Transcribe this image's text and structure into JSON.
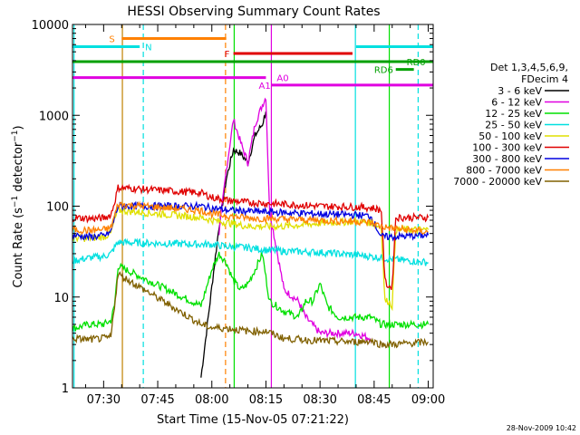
{
  "chart_data": {
    "type": "line",
    "title": "HESSI Observing Summary Count Rates",
    "xlabel": "Start Time (15-Nov-05 07:21:22)",
    "ylabel": "Count Rate (s⁻¹ detector⁻¹)",
    "ylabel_parts": {
      "base": "Count Rate (s",
      "sup1": "−1",
      "mid": " detector",
      "sup2": "−1",
      "end": ")"
    },
    "x_unit": "minutes after 07:00",
    "xlim": [
      21.37,
      121.37
    ],
    "yscale": "log",
    "ylim": [
      1,
      10000
    ],
    "x_ticks": [
      {
        "v": 30,
        "label": "07:30"
      },
      {
        "v": 45,
        "label": "07:45"
      },
      {
        "v": 60,
        "label": "08:00"
      },
      {
        "v": 75,
        "label": "08:15"
      },
      {
        "v": 90,
        "label": "08:30"
      },
      {
        "v": 105,
        "label": "08:45"
      },
      {
        "v": 120,
        "label": "09:00"
      }
    ],
    "y_ticks": [
      {
        "v": 1,
        "label": "1"
      },
      {
        "v": 10,
        "label": "10"
      },
      {
        "v": 100,
        "label": "100"
      },
      {
        "v": 1000,
        "label": "1000"
      },
      {
        "v": 10000,
        "label": "10000"
      }
    ],
    "legend_placement": "right",
    "legend_header": [
      "Det 1,3,4,5,6,9,",
      "FDecim 4"
    ],
    "timestamp": "28-Nov-2009 10:42",
    "series": [
      {
        "name": "3 - 6 keV",
        "color": "#000000",
        "points": [
          [
            57,
            1.3
          ],
          [
            62,
            60
          ],
          [
            64,
            200
          ],
          [
            66,
            420
          ],
          [
            68,
            380
          ],
          [
            70,
            300
          ],
          [
            72,
            600
          ],
          [
            74,
            800
          ],
          [
            75,
            1100
          ]
        ]
      },
      {
        "name": "6 - 12 keV",
        "color": "#e000e0",
        "points": [
          [
            62,
            50
          ],
          [
            64,
            250
          ],
          [
            66,
            900
          ],
          [
            68,
            500
          ],
          [
            70,
            300
          ],
          [
            72,
            800
          ],
          [
            74,
            1300
          ],
          [
            75,
            1600
          ],
          [
            76,
            90
          ],
          [
            80,
            12
          ],
          [
            84,
            9
          ],
          [
            86,
            6
          ],
          [
            90,
            4
          ],
          [
            95,
            4
          ],
          [
            100,
            4
          ],
          [
            104,
            3.5
          ]
        ]
      },
      {
        "name": "12 - 25 keV",
        "color": "#00e000",
        "points": [
          [
            21.4,
            4.5
          ],
          [
            26,
            5
          ],
          [
            30,
            5
          ],
          [
            32,
            5.5
          ],
          [
            33,
            8
          ],
          [
            34,
            22
          ],
          [
            57,
            8
          ],
          [
            60,
            20
          ],
          [
            62,
            30
          ],
          [
            64,
            24
          ],
          [
            66,
            15
          ],
          [
            68,
            12
          ],
          [
            70,
            14
          ],
          [
            72,
            20
          ],
          [
            74,
            30
          ],
          [
            76,
            9
          ],
          [
            80,
            7
          ],
          [
            84,
            6
          ],
          [
            86,
            9
          ],
          [
            88,
            9
          ],
          [
            90,
            14
          ],
          [
            92,
            8
          ],
          [
            95,
            6
          ],
          [
            100,
            6
          ],
          [
            104,
            6
          ],
          [
            107,
            5
          ],
          [
            108,
            5
          ],
          [
            120,
            5
          ]
        ]
      },
      {
        "name": "25 - 50 keV",
        "color": "#00e0e0",
        "points": [
          [
            21.4,
            25
          ],
          [
            26,
            27
          ],
          [
            30,
            28
          ],
          [
            32,
            30
          ],
          [
            33,
            35
          ],
          [
            34,
            40
          ],
          [
            57,
            38
          ],
          [
            60,
            38
          ],
          [
            64,
            36
          ],
          [
            70,
            35
          ],
          [
            75,
            33
          ],
          [
            80,
            32
          ],
          [
            90,
            31
          ],
          [
            100,
            29
          ],
          [
            104,
            28
          ],
          [
            107,
            27
          ],
          [
            110,
            26
          ],
          [
            120,
            24
          ]
        ]
      },
      {
        "name": "50 - 100 keV",
        "color": "#e0e000",
        "points": [
          [
            21.4,
            45
          ],
          [
            26,
            44
          ],
          [
            30,
            46
          ],
          [
            32,
            50
          ],
          [
            33,
            70
          ],
          [
            34,
            90
          ],
          [
            57,
            75
          ],
          [
            60,
            70
          ],
          [
            65,
            65
          ],
          [
            70,
            60
          ],
          [
            80,
            60
          ],
          [
            90,
            65
          ],
          [
            100,
            68
          ],
          [
            104,
            66
          ],
          [
            107,
            58
          ],
          [
            108,
            9
          ],
          [
            109,
            9
          ],
          [
            110,
            8
          ],
          [
            111,
            55
          ],
          [
            120,
            55
          ]
        ]
      },
      {
        "name": "100 - 300 keV",
        "color": "#e00000",
        "points": [
          [
            21.4,
            75
          ],
          [
            26,
            73
          ],
          [
            30,
            74
          ],
          [
            32,
            80
          ],
          [
            33,
            110
          ],
          [
            34,
            160
          ],
          [
            57,
            140
          ],
          [
            60,
            125
          ],
          [
            65,
            115
          ],
          [
            70,
            110
          ],
          [
            80,
            105
          ],
          [
            90,
            100
          ],
          [
            100,
            98
          ],
          [
            104,
            96
          ],
          [
            105,
            95
          ],
          [
            107,
            90
          ],
          [
            108,
            15
          ],
          [
            109,
            13
          ],
          [
            110,
            13
          ],
          [
            111,
            75
          ],
          [
            120,
            75
          ]
        ]
      },
      {
        "name": "300 - 800 keV",
        "color": "#0000e0",
        "points": [
          [
            21.4,
            48
          ],
          [
            26,
            46
          ],
          [
            30,
            47
          ],
          [
            32,
            52
          ],
          [
            33,
            75
          ],
          [
            34,
            100
          ],
          [
            57,
            100
          ],
          [
            60,
            95
          ],
          [
            65,
            90
          ],
          [
            70,
            88
          ],
          [
            80,
            85
          ],
          [
            90,
            82
          ],
          [
            100,
            80
          ],
          [
            104,
            78
          ],
          [
            107,
            46
          ],
          [
            110,
            46
          ],
          [
            120,
            48
          ]
        ]
      },
      {
        "name": "800 - 7000 keV",
        "color": "#ff8000",
        "points": [
          [
            21.4,
            55
          ],
          [
            26,
            54
          ],
          [
            30,
            55
          ],
          [
            32,
            58
          ],
          [
            33,
            78
          ],
          [
            34,
            105
          ],
          [
            57,
            90
          ],
          [
            60,
            82
          ],
          [
            65,
            78
          ],
          [
            70,
            74
          ],
          [
            80,
            72
          ],
          [
            90,
            70
          ],
          [
            100,
            68
          ],
          [
            104,
            66
          ],
          [
            107,
            60
          ],
          [
            110,
            57
          ],
          [
            120,
            52
          ]
        ]
      },
      {
        "name": "7000 - 20000 keV",
        "color": "#806000",
        "points": [
          [
            21.4,
            3.5
          ],
          [
            26,
            3.4
          ],
          [
            30,
            3.5
          ],
          [
            32,
            3.6
          ],
          [
            33,
            8
          ],
          [
            34,
            18
          ],
          [
            57,
            5
          ],
          [
            60,
            4.6
          ],
          [
            65,
            4.5
          ],
          [
            70,
            4.2
          ],
          [
            75,
            4.2
          ],
          [
            80,
            3.5
          ],
          [
            90,
            3.3
          ],
          [
            100,
            3.2
          ],
          [
            104,
            3.3
          ],
          [
            107,
            3
          ],
          [
            110,
            3
          ],
          [
            120,
            3.2
          ]
        ]
      }
    ],
    "vertical_markers": [
      {
        "x": 21.8,
        "color": "#00e0e0",
        "style": "solid"
      },
      {
        "x": 35.2,
        "color": "#c08000",
        "style": "solid"
      },
      {
        "x": 41,
        "color": "#00e0e0",
        "style": "dashed"
      },
      {
        "x": 63.8,
        "color": "#ff8000",
        "style": "dashed"
      },
      {
        "x": 66.2,
        "color": "#00e000",
        "style": "solid"
      },
      {
        "x": 76.5,
        "color": "#e000e0",
        "style": "solid"
      },
      {
        "x": 99.8,
        "color": "#00e0e0",
        "style": "solid"
      },
      {
        "x": 109.2,
        "color": "#00e000",
        "style": "solid"
      },
      {
        "x": 117.2,
        "color": "#00e0e0",
        "style": "dashed"
      }
    ],
    "flag_bars": [
      {
        "label": "S",
        "color": "#ff8000",
        "y": 7000,
        "x_start": 35,
        "x_end": 64,
        "label_x": 31.5
      },
      {
        "label": "N",
        "color": "#00e0e0",
        "y": 5700,
        "x_start": 21.4,
        "x_end": 40,
        "label_x": 41.5
      },
      {
        "label": "N",
        "color": "#00e0e0",
        "y": 5700,
        "x_start": 100,
        "x_end": 121.3,
        "label_x": null
      },
      {
        "label": "F",
        "color": "#e00000",
        "y": 4800,
        "x_start": 66,
        "x_end": 99,
        "label_x": 63.5
      },
      {
        "label": "",
        "color": "#00a000",
        "y": 3900,
        "x_start": 21.4,
        "x_end": 121.3,
        "label_x": null
      },
      {
        "label": "RD0",
        "color": "#00a000",
        "y": 3900,
        "x_start": null,
        "x_end": null,
        "label_x": 114
      },
      {
        "label": "RD6",
        "color": "#00a000",
        "y": 3200,
        "x_start": 111,
        "x_end": 116,
        "label_x": 105
      },
      {
        "label": "A0",
        "color": "#e000e0",
        "y": 2600,
        "x_start": 21.4,
        "x_end": 75,
        "label_x": 78
      },
      {
        "label": "A1",
        "color": "#e000e0",
        "y": 2150,
        "x_start": 76.5,
        "x_end": 121.3,
        "label_x": 73
      }
    ]
  }
}
